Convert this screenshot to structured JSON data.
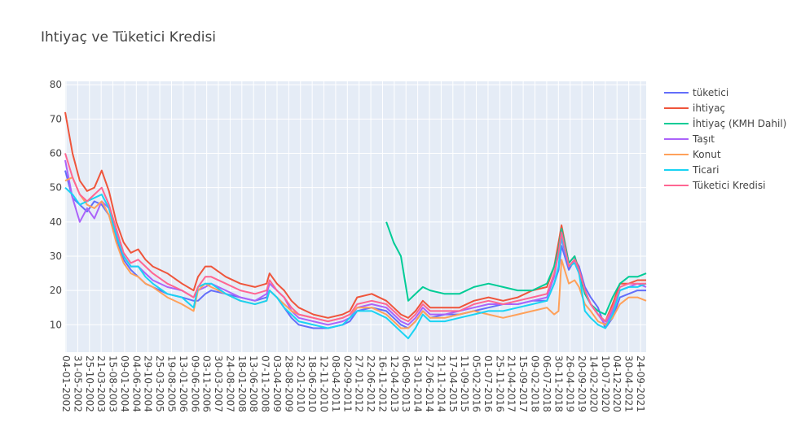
{
  "chart_data": {
    "type": "line",
    "title": "Ihtiyaç ve Tüketici Kredisi",
    "xlabel": "",
    "ylabel": "",
    "ylim": [
      2,
      81
    ],
    "y_ticks": [
      10,
      20,
      30,
      40,
      50,
      60,
      70,
      80
    ],
    "grid": true,
    "legend_position": "right",
    "background": "#e5ecf6",
    "x_tick_labels": [
      "04-01-2002",
      "31-05-2002",
      "25-10-2002",
      "21-03-2003",
      "15-08-2003",
      "09-01-2004",
      "04-06-2004",
      "29-10-2004",
      "25-03-2005",
      "19-08-2005",
      "13-01-2006",
      "09-06-2006",
      "03-11-2006",
      "30-03-2007",
      "24-08-2007",
      "18-01-2008",
      "13-06-2008",
      "07-11-2008",
      "03-04-2009",
      "28-08-2009",
      "22-01-2010",
      "18-06-2010",
      "12-11-2010",
      "08-04-2011",
      "02-09-2011",
      "27-01-2012",
      "22-06-2012",
      "16-11-2012",
      "12-04-2013",
      "06-09-2013",
      "31-01-2014",
      "27-06-2014",
      "21-11-2014",
      "17-04-2015",
      "11-09-2015",
      "05-02-2016",
      "01-07-2016",
      "25-11-2016",
      "21-04-2017",
      "15-09-2017",
      "09-02-2018",
      "06-07-2018",
      "30-11-2018",
      "26-04-2019",
      "20-09-2019",
      "14-02-2020",
      "10-07-2020",
      "04-12-2020",
      "30-04-2021",
      "24-09-2021"
    ],
    "x": [
      2002.0,
      2002.25,
      2002.5,
      2002.75,
      2003.0,
      2003.25,
      2003.5,
      2003.75,
      2004.0,
      2004.25,
      2004.5,
      2004.75,
      2005.0,
      2005.5,
      2006.0,
      2006.4,
      2006.55,
      2006.8,
      2007.0,
      2007.5,
      2008.0,
      2008.5,
      2008.9,
      2009.0,
      2009.25,
      2009.5,
      2009.75,
      2010.0,
      2010.5,
      2011.0,
      2011.5,
      2011.75,
      2012.0,
      2012.5,
      2013.0,
      2013.25,
      2013.5,
      2013.75,
      2014.0,
      2014.25,
      2014.5,
      2015.0,
      2015.5,
      2016.0,
      2016.5,
      2017.0,
      2017.5,
      2018.0,
      2018.5,
      2018.75,
      2018.9,
      2019.0,
      2019.25,
      2019.45,
      2019.6,
      2019.8,
      2020.0,
      2020.25,
      2020.5,
      2020.75,
      2021.0,
      2021.3,
      2021.6,
      2021.9
    ],
    "x_range": [
      2002.0,
      2021.9
    ],
    "series": [
      {
        "name": "tüketici",
        "color": "#636efa",
        "values": [
          55,
          47,
          45,
          43,
          46,
          45,
          42,
          35,
          29,
          26,
          24,
          22,
          21,
          19,
          18,
          17,
          17,
          19,
          20,
          19,
          18,
          17,
          18,
          20,
          18,
          15,
          12,
          10,
          9,
          9,
          10,
          11,
          14,
          15,
          14,
          12,
          10,
          9,
          11,
          14,
          12,
          13,
          13,
          14,
          15,
          16,
          16,
          17,
          17,
          22,
          26,
          33,
          26,
          29,
          27,
          21,
          18,
          15,
          9,
          12,
          18,
          19,
          20,
          20
        ]
      },
      {
        "name": "ihtiyaç",
        "color": "#ef553b",
        "values": [
          72,
          60,
          52,
          49,
          50,
          55,
          49,
          40,
          34,
          31,
          32,
          29,
          27,
          25,
          22,
          20,
          24,
          27,
          27,
          24,
          22,
          21,
          22,
          25,
          22,
          20,
          17,
          15,
          13,
          12,
          13,
          14,
          18,
          19,
          17,
          15,
          13,
          12,
          14,
          17,
          15,
          15,
          15,
          17,
          18,
          17,
          18,
          20,
          21,
          27,
          34,
          39,
          28,
          30,
          26,
          20,
          16,
          13,
          11,
          16,
          22,
          22,
          23,
          23
        ]
      },
      {
        "name": "İhtiyaç (KMH Dahil)",
        "color": "#00cc96",
        "values": [
          null,
          null,
          null,
          null,
          null,
          null,
          null,
          null,
          null,
          null,
          null,
          null,
          null,
          null,
          null,
          null,
          null,
          null,
          null,
          null,
          null,
          null,
          null,
          null,
          null,
          null,
          null,
          null,
          null,
          null,
          null,
          null,
          null,
          null,
          40,
          34,
          30,
          17,
          19,
          21,
          20,
          19,
          19,
          21,
          22,
          21,
          20,
          20,
          22,
          27,
          32,
          38,
          28,
          30,
          25,
          19,
          16,
          14,
          13,
          18,
          22,
          24,
          24,
          25
        ]
      },
      {
        "name": "Taşıt",
        "color": "#ab63fa",
        "values": [
          58,
          47,
          40,
          44,
          41,
          46,
          44,
          37,
          30,
          27,
          27,
          25,
          23,
          21,
          20,
          18,
          20,
          21,
          22,
          20,
          18,
          17,
          19,
          22,
          20,
          18,
          14,
          12,
          11,
          10,
          11,
          12,
          15,
          16,
          15,
          13,
          11,
          10,
          12,
          15,
          13,
          13,
          14,
          15,
          16,
          16,
          16,
          17,
          18,
          24,
          31,
          35,
          27,
          29,
          26,
          20,
          16,
          13,
          10,
          14,
          20,
          21,
          22,
          21
        ]
      },
      {
        "name": "Konut",
        "color": "#ffa15a",
        "values": [
          52,
          53,
          48,
          45,
          44,
          46,
          42,
          34,
          28,
          25,
          24,
          22,
          21,
          18,
          16,
          14,
          20,
          22,
          21,
          19,
          17,
          16,
          17,
          20,
          18,
          16,
          14,
          13,
          12,
          11,
          12,
          13,
          15,
          15,
          13,
          11,
          9,
          9,
          11,
          14,
          12,
          12,
          13,
          14,
          13,
          12,
          13,
          14,
          15,
          13,
          14,
          29,
          22,
          23,
          21,
          16,
          14,
          11,
          10,
          12,
          16,
          18,
          18,
          17
        ]
      },
      {
        "name": "Ticari",
        "color": "#19d3f3",
        "values": [
          50,
          48,
          45,
          46,
          47,
          48,
          44,
          36,
          30,
          27,
          27,
          24,
          22,
          19,
          18,
          15,
          21,
          22,
          22,
          19,
          17,
          16,
          17,
          20,
          18,
          15,
          13,
          11,
          10,
          9,
          10,
          12,
          14,
          14,
          12,
          10,
          8,
          6,
          9,
          13,
          11,
          11,
          12,
          13,
          14,
          14,
          15,
          16,
          17,
          22,
          27,
          36,
          27,
          28,
          25,
          14,
          12,
          10,
          9,
          13,
          20,
          21,
          21,
          22
        ]
      },
      {
        "name": "Tüketici Kredisi",
        "color": "#ff6692",
        "values": [
          60,
          53,
          48,
          46,
          48,
          50,
          45,
          38,
          31,
          28,
          29,
          27,
          25,
          22,
          20,
          18,
          21,
          24,
          24,
          22,
          20,
          19,
          20,
          23,
          20,
          18,
          15,
          13,
          12,
          11,
          12,
          13,
          16,
          17,
          16,
          14,
          12,
          11,
          13,
          16,
          14,
          14,
          14,
          16,
          17,
          16,
          17,
          18,
          19,
          25,
          31,
          37,
          27,
          29,
          26,
          20,
          16,
          13,
          11,
          15,
          21,
          22,
          22,
          22
        ]
      }
    ]
  }
}
